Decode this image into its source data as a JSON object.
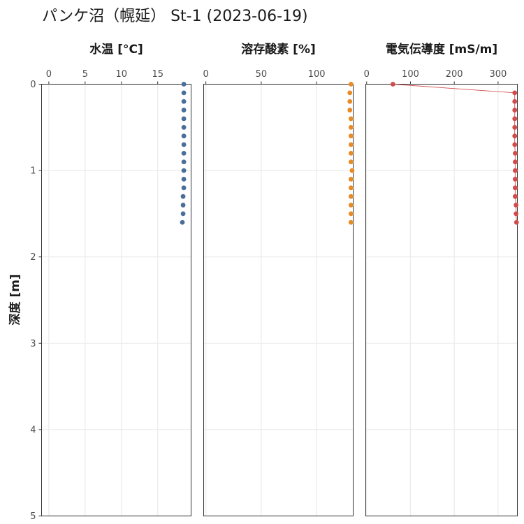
{
  "chart_data": {
    "type": "scatter",
    "title": "パンケ沼（幌延） St-1 (2023-06-19)",
    "ylabel": "深度 [m]",
    "y_reversed": true,
    "ylim": [
      0,
      5
    ],
    "y_ticks": [
      0,
      1,
      2,
      3,
      4,
      5
    ],
    "depths": [
      0,
      0.1,
      0.2,
      0.3,
      0.4,
      0.5,
      0.6,
      0.7,
      0.8,
      0.9,
      1.0,
      1.1,
      1.2,
      1.3,
      1.4,
      1.5,
      1.6
    ],
    "panels": [
      {
        "name": "水温 [°C]",
        "color": "#4a6e9a",
        "xlim": [
          -1,
          19.6
        ],
        "x_ticks": [
          0,
          5,
          10,
          15
        ],
        "connect_lines": false,
        "values": [
          18.6,
          18.6,
          18.6,
          18.6,
          18.6,
          18.6,
          18.6,
          18.6,
          18.6,
          18.6,
          18.6,
          18.6,
          18.6,
          18.5,
          18.5,
          18.5,
          18.4
        ]
      },
      {
        "name": "溶存酸素 [%]",
        "color": "#e88a25",
        "xlim": [
          -2,
          133
        ],
        "x_ticks": [
          0,
          50,
          100
        ],
        "connect_lines": false,
        "values": [
          131,
          130,
          130,
          130,
          131,
          131,
          131,
          131,
          131,
          131,
          132,
          131,
          131,
          131,
          131,
          131,
          131
        ]
      },
      {
        "name": "電気伝導度 [mS/m]",
        "color": "#d24b4b",
        "xlim": [
          -2,
          344
        ],
        "x_ticks": [
          0,
          100,
          200,
          300
        ],
        "connect_lines": true,
        "values": [
          60,
          338,
          338,
          338,
          338,
          338,
          338,
          338,
          339,
          339,
          339,
          339,
          339,
          339,
          341,
          341,
          342
        ]
      }
    ]
  }
}
